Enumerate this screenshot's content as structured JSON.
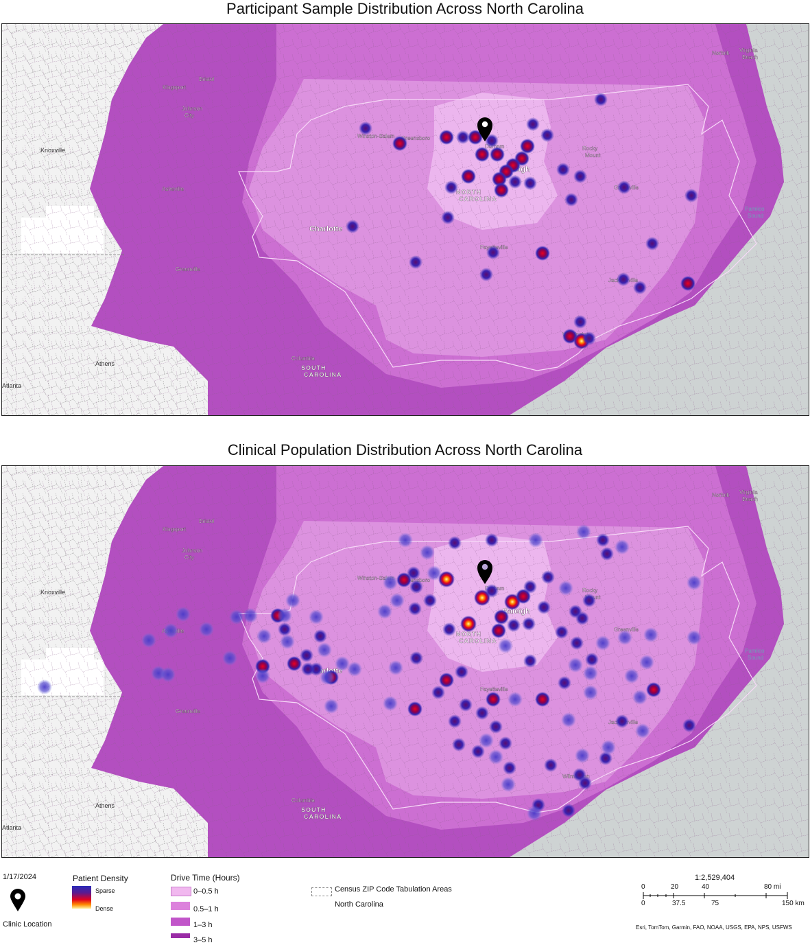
{
  "titles": {
    "top": "Participant Sample Distribution Across North Carolina",
    "bottom": "Clinical Population Distribution Across North Carolina"
  },
  "map_labels": {
    "cities_major": [
      "Charlotte",
      "Raleigh"
    ],
    "cities": [
      "Winston-Salem",
      "Greensboro",
      "Durham",
      "Rocky Mount",
      "Greenville",
      "Fayetteville",
      "Jacksonville",
      "Wilmington",
      "Asheville",
      "Kingsport",
      "Bristol",
      "Johnson City",
      "Norfolk",
      "Virginia Beach",
      "Greenville",
      "Columbia",
      "Athens"
    ],
    "outside": [
      "Knoxville",
      "Atlanta"
    ],
    "states": [
      "NORTH CAROLINA",
      "SOUTH CAROLINA"
    ],
    "water": [
      "Pamlico Sound"
    ]
  },
  "legend": {
    "date": "1/17/2024",
    "clinic_label": "Clinic Location",
    "density_title": "Patient Density",
    "density_sparse": "Sparse",
    "density_dense": "Dense",
    "drive_title": "Drive Time (Hours)",
    "drive_items": [
      {
        "label": "0–0.5 h",
        "color": "#f1b8ef"
      },
      {
        "label": "0.5–1 h",
        "color": "#dc82dc"
      },
      {
        "label": "1–3 h",
        "color": "#c155c9"
      },
      {
        "label": "3–5 h",
        "color": "#9a2ca6"
      }
    ],
    "zcta_label": "Census ZIP Code Tabulation Areas",
    "state_label": "North Carolina",
    "scale_ratio": "1:2,529,404",
    "scale_mi": [
      "0",
      "20",
      "40",
      "80 mi"
    ],
    "scale_km": [
      "0",
      "37.5",
      "75",
      "150 km"
    ],
    "attribution": "Esri, TomTom, Garmin, FAO, NOAA, USGS, EPA, NPS, USFWS"
  },
  "colors": {
    "zone_outer": "#b34fc0",
    "zone_3h": "#cc6fd2",
    "zone_1h": "#dc92df",
    "zone_half": "#ecb6ee",
    "ocean": "#ced3d3",
    "land_outside": "#f2f2f2"
  }
}
